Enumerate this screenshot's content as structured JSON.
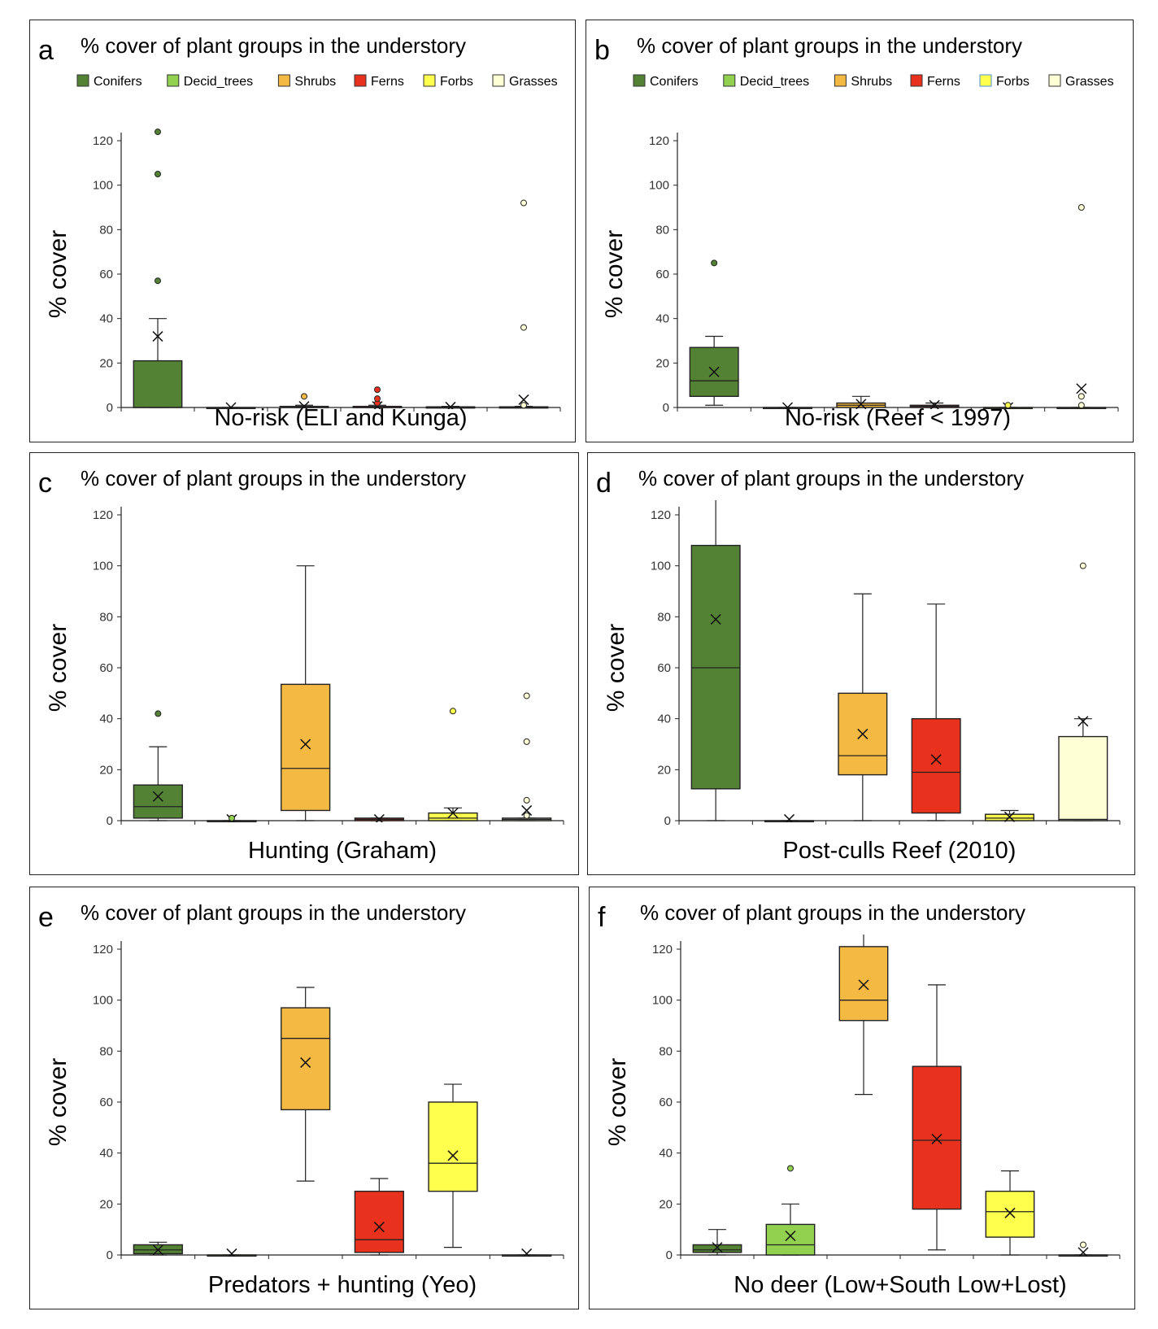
{
  "colors": {
    "Conifers": "#548235",
    "Decid_trees": "#92d050",
    "Shrubs": "#f4b942",
    "Ferns": "#e8321e",
    "Forbs": "#ffff4d",
    "Grasses": "#ffffd6"
  },
  "chart_data": [
    {
      "type": "box",
      "panel_label": "a",
      "title": "% cover of plant groups in the understory",
      "xlabel": "No-risk (ELI and Kunga)",
      "ylabel": "% cover",
      "ylim": [
        0,
        125
      ],
      "yticks": [
        0,
        20,
        40,
        60,
        80,
        100,
        120
      ],
      "legend": [
        "Conifers",
        "Decid_trees",
        "Shrubs",
        "Ferns",
        "Forbs",
        "Grasses"
      ],
      "legend_position": "top",
      "series": [
        {
          "name": "Conifers",
          "q1": 0,
          "median": 0,
          "q3": 21,
          "whisker_low": 0,
          "whisker_high": 40,
          "mean": 32,
          "outliers": [
            57,
            105,
            124
          ]
        },
        {
          "name": "Decid_trees",
          "q1": 0,
          "median": 0,
          "q3": 0,
          "whisker_low": 0,
          "whisker_high": 0,
          "mean": 0,
          "outliers": []
        },
        {
          "name": "Shrubs",
          "q1": 0,
          "median": 0,
          "q3": 0.5,
          "whisker_low": 0,
          "whisker_high": 1,
          "mean": 0.5,
          "outliers": [
            5
          ]
        },
        {
          "name": "Ferns",
          "q1": 0,
          "median": 0,
          "q3": 0.5,
          "whisker_low": 0,
          "whisker_high": 1,
          "mean": 0.5,
          "outliers": [
            2,
            4,
            8
          ]
        },
        {
          "name": "Forbs",
          "q1": 0,
          "median": 0,
          "q3": 0.3,
          "whisker_low": 0,
          "whisker_high": 0.5,
          "mean": 0.2,
          "outliers": []
        },
        {
          "name": "Grasses",
          "q1": 0,
          "median": 0,
          "q3": 0.3,
          "whisker_low": 0,
          "whisker_high": 0.5,
          "mean": 3.5,
          "outliers": [
            1,
            36,
            92
          ]
        }
      ]
    },
    {
      "type": "box",
      "panel_label": "b",
      "title": "% cover of plant groups in the understory",
      "xlabel": "No-risk (Reef < 1997)",
      "ylabel": "% cover",
      "ylim": [
        0,
        125
      ],
      "yticks": [
        0,
        20,
        40,
        60,
        80,
        100,
        120
      ],
      "legend": [
        "Conifers",
        "Decid_trees",
        "Shrubs",
        "Ferns",
        "Forbs",
        "Grasses"
      ],
      "legend_position": "top",
      "series": [
        {
          "name": "Conifers",
          "q1": 5,
          "median": 12,
          "q3": 27,
          "whisker_low": 1,
          "whisker_high": 32,
          "mean": 16,
          "outliers": [
            65
          ]
        },
        {
          "name": "Decid_trees",
          "q1": 0,
          "median": 0,
          "q3": 0,
          "whisker_low": 0,
          "whisker_high": 0,
          "mean": 0,
          "outliers": []
        },
        {
          "name": "Shrubs",
          "q1": 0,
          "median": 1,
          "q3": 2,
          "whisker_low": 0,
          "whisker_high": 5,
          "mean": 1.5,
          "outliers": []
        },
        {
          "name": "Ferns",
          "q1": 0,
          "median": 0.5,
          "q3": 1,
          "whisker_low": 0,
          "whisker_high": 2,
          "mean": 1,
          "outliers": []
        },
        {
          "name": "Forbs",
          "q1": 0,
          "median": 0,
          "q3": 0,
          "whisker_low": 0,
          "whisker_high": 0,
          "mean": 0,
          "outliers": [
            1
          ]
        },
        {
          "name": "Grasses",
          "q1": 0,
          "median": 0,
          "q3": 0,
          "whisker_low": 0,
          "whisker_high": 0,
          "mean": 8.5,
          "outliers": [
            1,
            5,
            90
          ]
        }
      ]
    },
    {
      "type": "box",
      "panel_label": "c",
      "title": "% cover of plant groups in the understory",
      "xlabel": "Hunting (Graham)",
      "ylabel": "% cover",
      "ylim": [
        0,
        120
      ],
      "yticks": [
        0,
        20,
        40,
        60,
        80,
        100,
        120
      ],
      "series": [
        {
          "name": "Conifers",
          "q1": 1,
          "median": 5.5,
          "q3": 14,
          "whisker_low": 0,
          "whisker_high": 29,
          "mean": 9.5,
          "outliers": [
            42
          ]
        },
        {
          "name": "Decid_trees",
          "q1": 0,
          "median": 0,
          "q3": 0,
          "whisker_low": 0,
          "whisker_high": 0,
          "mean": 0.5,
          "outliers": [
            1
          ]
        },
        {
          "name": "Shrubs",
          "q1": 4,
          "median": 20.5,
          "q3": 53.5,
          "whisker_low": 0,
          "whisker_high": 100,
          "mean": 30,
          "outliers": []
        },
        {
          "name": "Ferns",
          "q1": 0,
          "median": 0.5,
          "q3": 1,
          "whisker_low": 0,
          "whisker_high": 1,
          "mean": 0.5,
          "outliers": []
        },
        {
          "name": "Forbs",
          "q1": 0,
          "median": 1,
          "q3": 3,
          "whisker_low": 0,
          "whisker_high": 5,
          "mean": 3,
          "outliers": [
            43
          ]
        },
        {
          "name": "Grasses",
          "q1": 0,
          "median": 0.5,
          "q3": 1,
          "whisker_low": 0,
          "whisker_high": 1,
          "mean": 4,
          "outliers": [
            2,
            8,
            31,
            49
          ]
        }
      ]
    },
    {
      "type": "box",
      "panel_label": "d",
      "title": "% cover of plant groups in the understory",
      "xlabel": "Post-culls Reef (2010)",
      "ylabel": "% cover",
      "ylim": [
        0,
        120
      ],
      "yticks": [
        0,
        20,
        40,
        60,
        80,
        100,
        120
      ],
      "series": [
        {
          "name": "Conifers",
          "q1": 12.5,
          "median": 60,
          "q3": 108,
          "whisker_low": 0,
          "whisker_high": 126,
          "mean": 79,
          "outliers": []
        },
        {
          "name": "Decid_trees",
          "q1": 0,
          "median": 0,
          "q3": 0,
          "whisker_low": 0,
          "whisker_high": 0,
          "mean": 0.5,
          "outliers": []
        },
        {
          "name": "Shrubs",
          "q1": 18,
          "median": 25.5,
          "q3": 50,
          "whisker_low": 0,
          "whisker_high": 89,
          "mean": 34,
          "outliers": []
        },
        {
          "name": "Ferns",
          "q1": 3,
          "median": 19,
          "q3": 40,
          "whisker_low": 0,
          "whisker_high": 85,
          "mean": 24,
          "outliers": []
        },
        {
          "name": "Forbs",
          "q1": 0,
          "median": 1,
          "q3": 2.5,
          "whisker_low": 0,
          "whisker_high": 4,
          "mean": 1.5,
          "outliers": []
        },
        {
          "name": "Grasses",
          "q1": 0,
          "median": 0.5,
          "q3": 33,
          "whisker_low": 0,
          "whisker_high": 40,
          "mean": 39,
          "outliers": [
            100
          ]
        }
      ]
    },
    {
      "type": "box",
      "panel_label": "e",
      "title": "% cover of plant groups in the understory",
      "xlabel": "Predators + hunting (Yeo)",
      "ylabel": "% cover",
      "ylim": [
        0,
        120
      ],
      "yticks": [
        0,
        20,
        40,
        60,
        80,
        100,
        120
      ],
      "series": [
        {
          "name": "Conifers",
          "q1": 0.5,
          "median": 2,
          "q3": 4,
          "whisker_low": 0,
          "whisker_high": 5,
          "mean": 2,
          "outliers": []
        },
        {
          "name": "Decid_trees",
          "q1": 0,
          "median": 0,
          "q3": 0,
          "whisker_low": 0,
          "whisker_high": 0,
          "mean": 0.5,
          "outliers": []
        },
        {
          "name": "Shrubs",
          "q1": 57,
          "median": 85,
          "q3": 97,
          "whisker_low": 29,
          "whisker_high": 105,
          "mean": 75.5,
          "outliers": []
        },
        {
          "name": "Ferns",
          "q1": 1,
          "median": 6,
          "q3": 25,
          "whisker_low": 0,
          "whisker_high": 30,
          "mean": 11,
          "outliers": []
        },
        {
          "name": "Forbs",
          "q1": 25,
          "median": 36,
          "q3": 60,
          "whisker_low": 3,
          "whisker_high": 67,
          "mean": 39,
          "outliers": []
        },
        {
          "name": "Grasses",
          "q1": 0,
          "median": 0,
          "q3": 0,
          "whisker_low": 0,
          "whisker_high": 0,
          "mean": 0.5,
          "outliers": []
        }
      ]
    },
    {
      "type": "box",
      "panel_label": "f",
      "title": "% cover of plant groups in the understory",
      "xlabel": "No deer (Low+South Low+Lost)",
      "ylabel": "% cover",
      "ylim": [
        0,
        120
      ],
      "yticks": [
        0,
        20,
        40,
        60,
        80,
        100,
        120
      ],
      "series": [
        {
          "name": "Conifers",
          "q1": 1,
          "median": 2,
          "q3": 4,
          "whisker_low": 0,
          "whisker_high": 10,
          "mean": 3,
          "outliers": []
        },
        {
          "name": "Decid_trees",
          "q1": 0,
          "median": 4,
          "q3": 12,
          "whisker_low": 0,
          "whisker_high": 20,
          "mean": 7.5,
          "outliers": [
            34
          ]
        },
        {
          "name": "Shrubs",
          "q1": 92,
          "median": 100,
          "q3": 121,
          "whisker_low": 63,
          "whisker_high": 126,
          "mean": 106,
          "outliers": []
        },
        {
          "name": "Ferns",
          "q1": 18,
          "median": 45,
          "q3": 74,
          "whisker_low": 2,
          "whisker_high": 106,
          "mean": 45.5,
          "outliers": []
        },
        {
          "name": "Forbs",
          "q1": 7,
          "median": 17,
          "q3": 25,
          "whisker_low": 0,
          "whisker_high": 33,
          "mean": 16.5,
          "outliers": []
        },
        {
          "name": "Grasses",
          "q1": 0,
          "median": 0,
          "q3": 0,
          "whisker_low": 0,
          "whisker_high": 0,
          "mean": 1,
          "outliers": [
            4
          ]
        }
      ]
    }
  ]
}
